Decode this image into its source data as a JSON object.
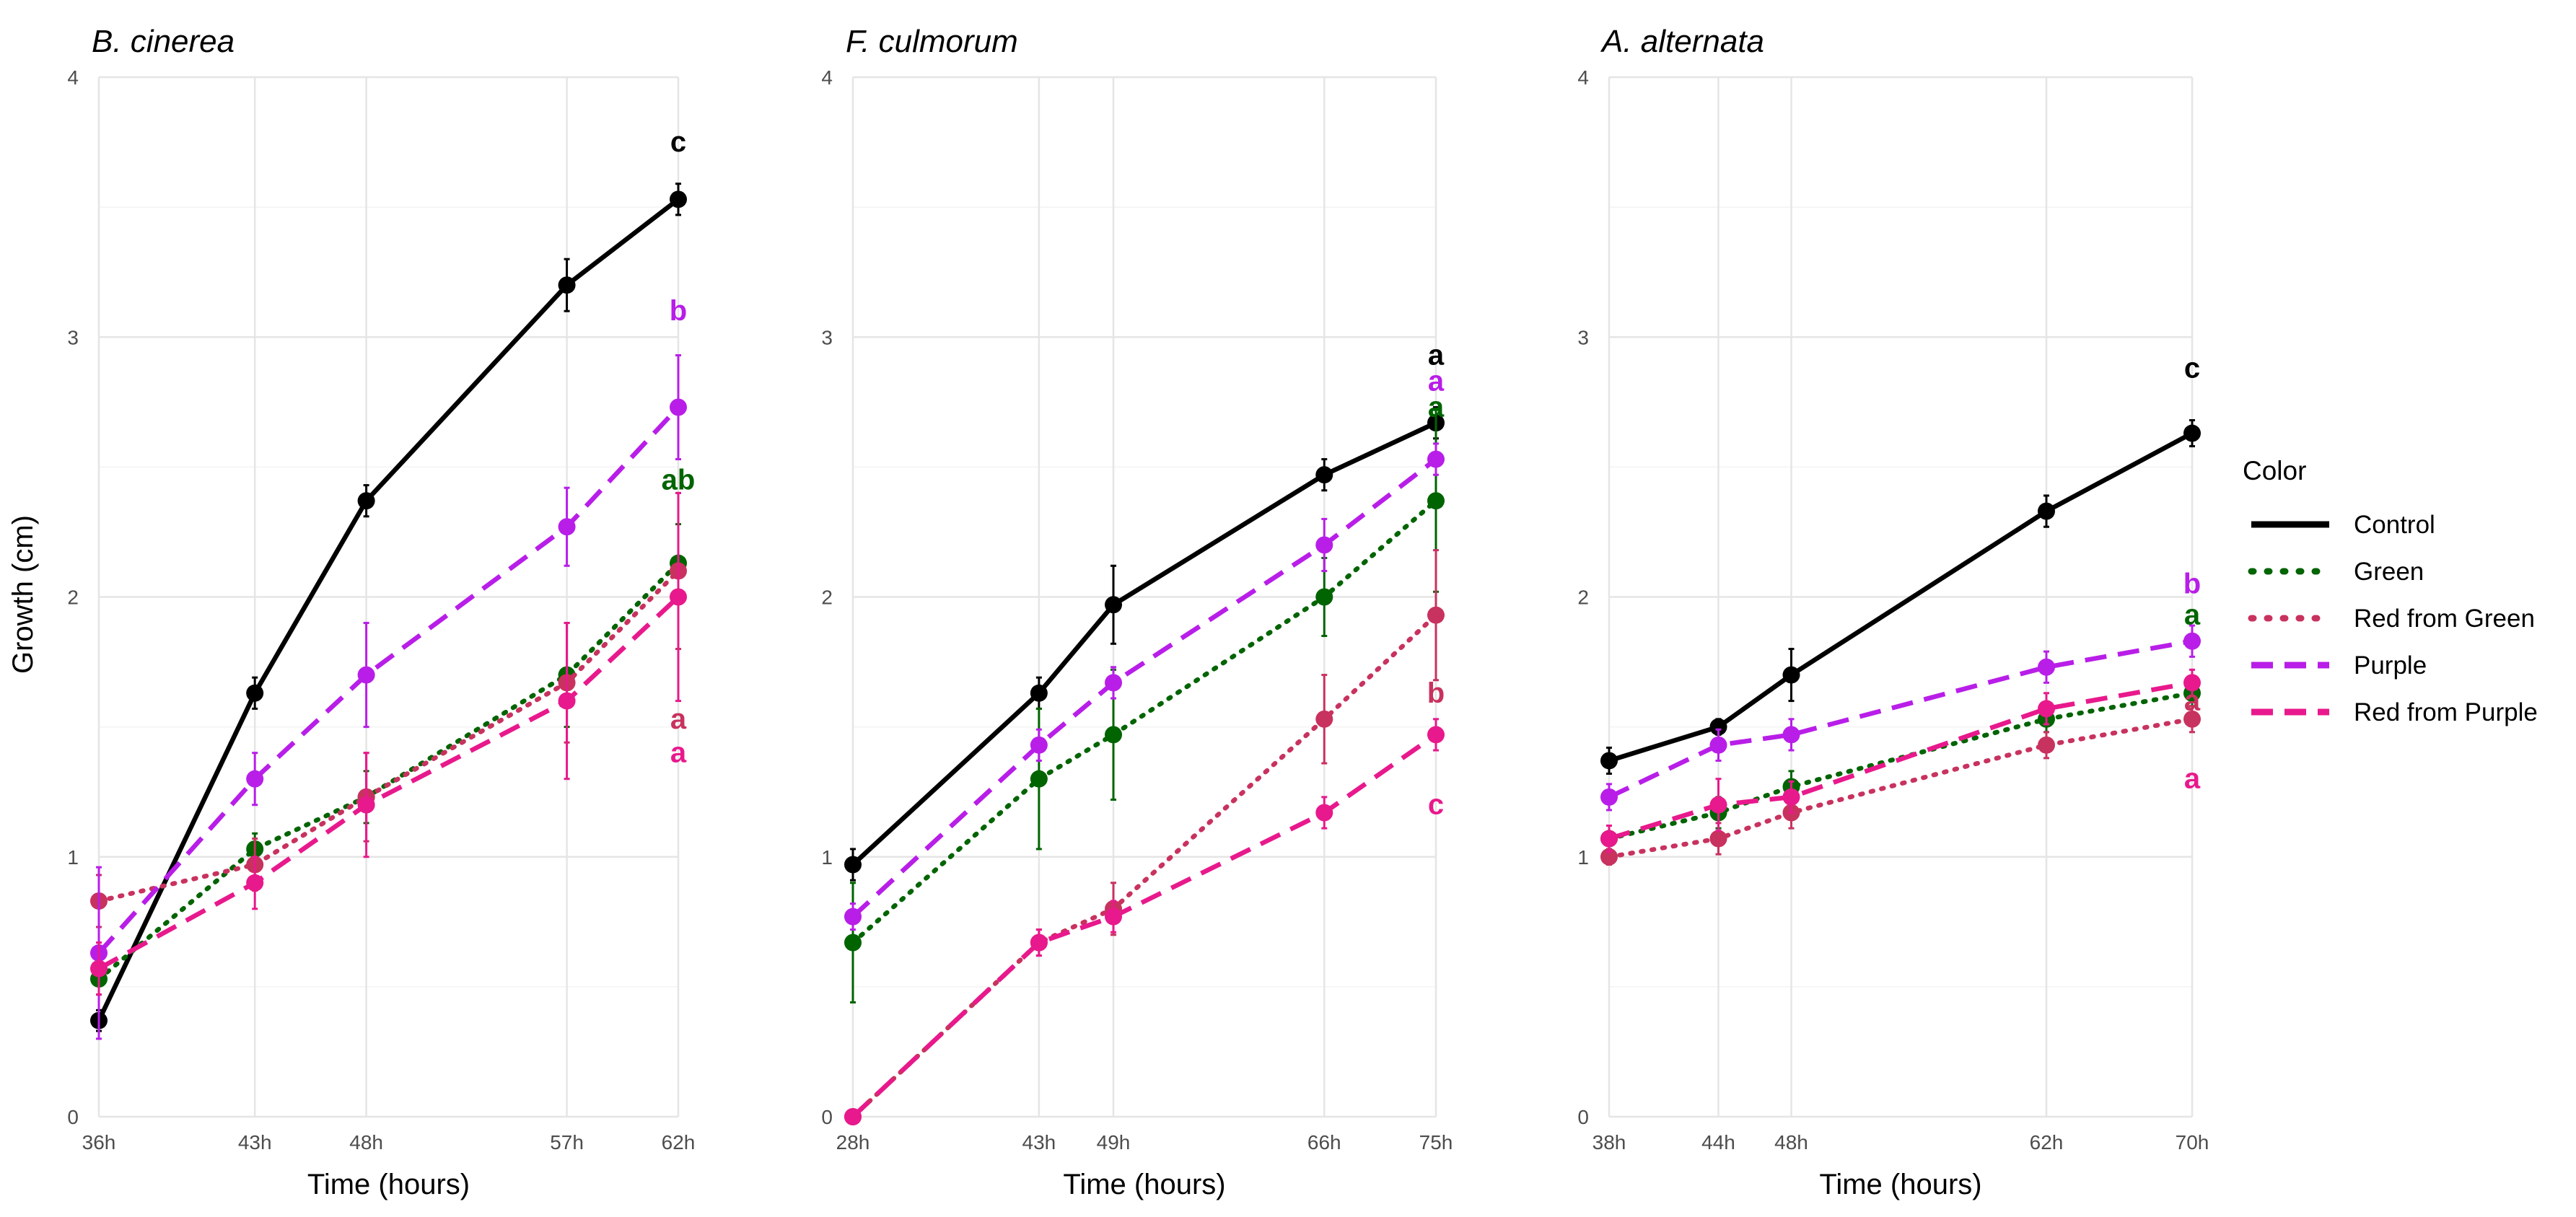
{
  "figure": {
    "ylabel": "Growth (cm)",
    "legend_title": "Color",
    "legend": [
      {
        "name": "Control",
        "color": "#000000",
        "dash": "solid"
      },
      {
        "name": "Green",
        "color": "#006400",
        "dash": "dotted"
      },
      {
        "name": "Red from Green",
        "color": "#C8325F",
        "dash": "dotted"
      },
      {
        "name": "Purple",
        "color": "#B81EE8",
        "dash": "dashed"
      },
      {
        "name": "Red from Purple",
        "color": "#E8198C",
        "dash": "dashed"
      }
    ]
  },
  "chart_data": [
    {
      "type": "line",
      "title": "B. cinerea",
      "xlabel": "Time (hours)",
      "ylabel": "Growth (cm)",
      "x": [
        36,
        43,
        48,
        57,
        62
      ],
      "xtick_labels": [
        "36h",
        "43h",
        "48h",
        "57h",
        "62h"
      ],
      "ylim": [
        0,
        4
      ],
      "yticks": [
        "0",
        "1",
        "2",
        "3",
        "4"
      ],
      "grid": true,
      "series": [
        {
          "name": "Control",
          "color": "#000000",
          "values": [
            0.37,
            1.63,
            2.37,
            3.2,
            3.53
          ],
          "errors": [
            0.04,
            0.06,
            0.06,
            0.1,
            0.06
          ]
        },
        {
          "name": "Green",
          "color": "#006400",
          "values": [
            0.53,
            1.03,
            1.23,
            1.7,
            2.13
          ],
          "errors": [
            0.06,
            0.06,
            0.1,
            0.2,
            0.15
          ]
        },
        {
          "name": "Red from Green",
          "color": "#C8325F",
          "values": [
            0.83,
            0.97,
            1.23,
            1.67,
            2.1
          ],
          "errors": [
            0.1,
            0.1,
            0.17,
            0.23,
            0.3
          ]
        },
        {
          "name": "Purple",
          "color": "#B81EE8",
          "values": [
            0.63,
            1.3,
            1.7,
            2.27,
            2.73
          ],
          "errors": [
            0.33,
            0.1,
            0.2,
            0.15,
            0.2
          ]
        },
        {
          "name": "Red from Purple",
          "color": "#E8198C",
          "values": [
            0.57,
            0.9,
            1.2,
            1.6,
            2.0
          ],
          "errors": [
            0.1,
            0.1,
            0.2,
            0.3,
            0.4
          ]
        }
      ],
      "annotations": [
        {
          "text": "c",
          "series": "Control",
          "y": 3.75
        },
        {
          "text": "b",
          "series": "Purple",
          "y": 3.1
        },
        {
          "text": "ab",
          "series": "Green",
          "y": 2.45
        },
        {
          "text": "a",
          "series": "Red from Green",
          "y": 1.53
        },
        {
          "text": "a",
          "series": "Red from Purple",
          "y": 1.4
        }
      ]
    },
    {
      "type": "line",
      "title": "F. culmorum",
      "xlabel": "Time (hours)",
      "ylabel": "Growth (cm)",
      "x": [
        28,
        43,
        49,
        66,
        75
      ],
      "xtick_labels": [
        "28h",
        "43h",
        "49h",
        "66h",
        "75h"
      ],
      "ylim": [
        0,
        4
      ],
      "yticks": [
        "0",
        "1",
        "2",
        "3",
        "4"
      ],
      "grid": true,
      "series": [
        {
          "name": "Control",
          "color": "#000000",
          "values": [
            0.97,
            1.63,
            1.97,
            2.47,
            2.67
          ],
          "errors": [
            0.06,
            0.06,
            0.15,
            0.06,
            0.06
          ]
        },
        {
          "name": "Green",
          "color": "#006400",
          "values": [
            0.67,
            1.3,
            1.47,
            2.0,
            2.37
          ],
          "errors": [
            0.23,
            0.27,
            0.25,
            0.15,
            0.35
          ]
        },
        {
          "name": "Red from Green",
          "color": "#C8325F",
          "values": [
            0.0,
            0.67,
            0.8,
            1.53,
            1.93
          ],
          "errors": [
            0.0,
            0.05,
            0.1,
            0.17,
            0.25
          ]
        },
        {
          "name": "Purple",
          "color": "#B81EE8",
          "values": [
            0.77,
            1.43,
            1.67,
            2.2,
            2.53
          ],
          "errors": [
            0.05,
            0.06,
            0.06,
            0.1,
            0.06
          ]
        },
        {
          "name": "Red from Purple",
          "color": "#E8198C",
          "values": [
            0.0,
            0.67,
            0.77,
            1.17,
            1.47
          ],
          "errors": [
            0.0,
            0.05,
            0.06,
            0.06,
            0.06
          ]
        }
      ],
      "annotations": [
        {
          "text": "a",
          "series": "Control",
          "y": 2.93
        },
        {
          "text": "a",
          "series": "Purple",
          "y": 2.83
        },
        {
          "text": "a",
          "series": "Green",
          "y": 2.73
        },
        {
          "text": "b",
          "series": "Red from Green",
          "y": 1.63
        },
        {
          "text": "c",
          "series": "Red from Purple",
          "y": 1.2
        }
      ]
    },
    {
      "type": "line",
      "title": "A. alternata",
      "xlabel": "Time (hours)",
      "ylabel": "Growth (cm)",
      "x": [
        38,
        44,
        48,
        62,
        70
      ],
      "xtick_labels": [
        "38h",
        "44h",
        "48h",
        "62h",
        "70h"
      ],
      "ylim": [
        0,
        4
      ],
      "yticks": [
        "0",
        "1",
        "2",
        "3",
        "4"
      ],
      "grid": true,
      "series": [
        {
          "name": "Control",
          "color": "#000000",
          "values": [
            1.37,
            1.5,
            1.7,
            2.33,
            2.63
          ],
          "errors": [
            0.05,
            0.03,
            0.1,
            0.06,
            0.05
          ]
        },
        {
          "name": "Green",
          "color": "#006400",
          "values": [
            1.07,
            1.17,
            1.27,
            1.53,
            1.63
          ],
          "errors": [
            0.05,
            0.06,
            0.06,
            0.05,
            0.05
          ]
        },
        {
          "name": "Red from Green",
          "color": "#C8325F",
          "values": [
            1.0,
            1.07,
            1.17,
            1.43,
            1.53
          ],
          "errors": [
            0.03,
            0.06,
            0.06,
            0.05,
            0.05
          ]
        },
        {
          "name": "Purple",
          "color": "#B81EE8",
          "values": [
            1.23,
            1.43,
            1.47,
            1.73,
            1.83
          ],
          "errors": [
            0.05,
            0.06,
            0.06,
            0.06,
            0.06
          ]
        },
        {
          "name": "Red from Purple",
          "color": "#E8198C",
          "values": [
            1.07,
            1.2,
            1.23,
            1.57,
            1.67
          ],
          "errors": [
            0.05,
            0.1,
            0.06,
            0.06,
            0.05
          ]
        }
      ],
      "annotations": [
        {
          "text": "c",
          "series": "Control",
          "y": 2.88
        },
        {
          "text": "b",
          "series": "Purple",
          "y": 2.05
        },
        {
          "text": "a",
          "series": "Green",
          "y": 1.93
        },
        {
          "text": "a",
          "series": "Red from Green",
          "y": 1.6
        },
        {
          "text": "a",
          "series": "Red from Purple",
          "y": 1.3
        }
      ]
    }
  ]
}
